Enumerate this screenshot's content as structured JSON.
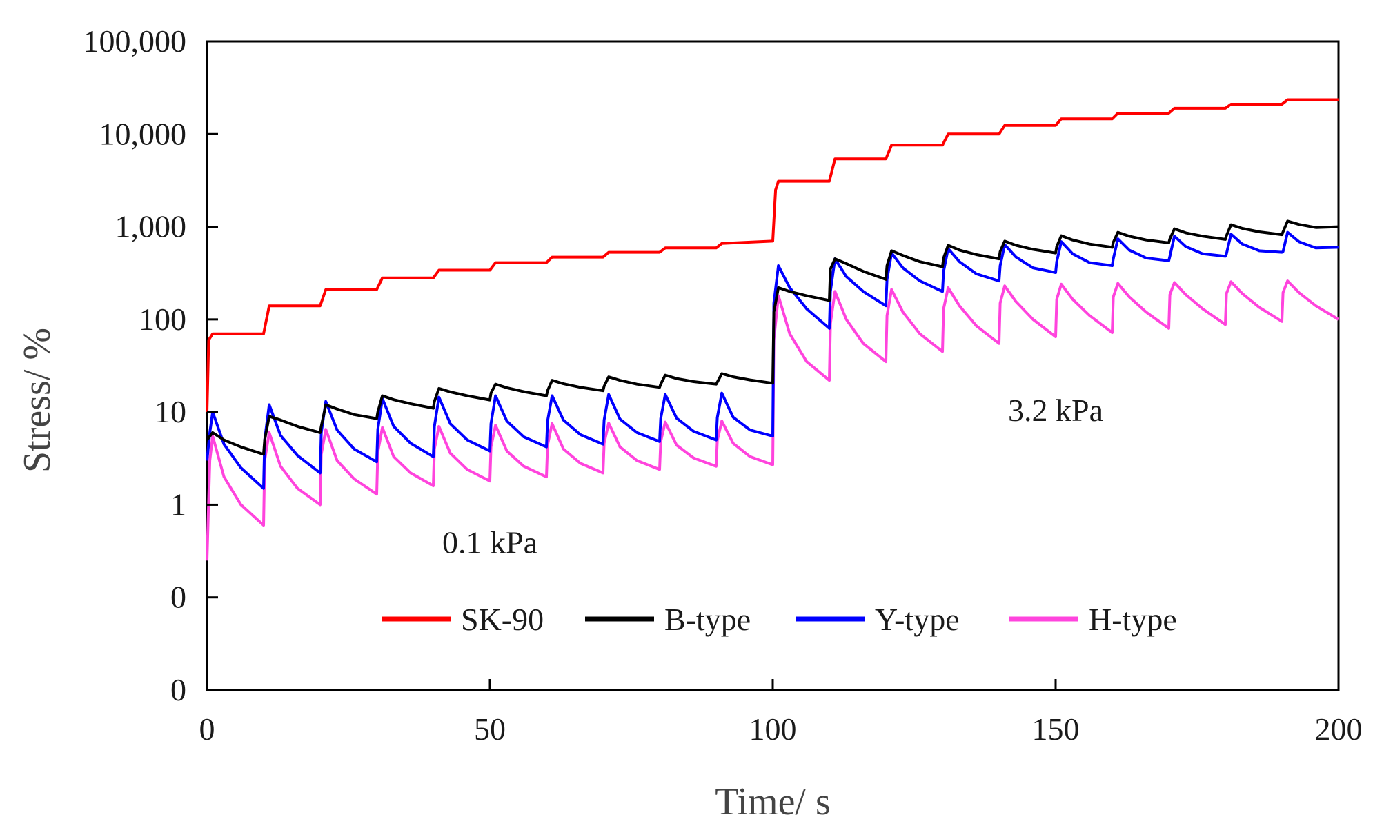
{
  "chart_data": {
    "type": "line",
    "title": "",
    "xlabel": "Time/ s",
    "ylabel": "Stress/ %",
    "xlim": [
      0,
      200
    ],
    "y_scale": "log",
    "ylim": [
      0.01,
      100000
    ],
    "x_ticks": [
      0,
      50,
      100,
      150,
      200
    ],
    "x_tick_labels": [
      "0",
      "50",
      "100",
      "150",
      "200"
    ],
    "y_ticks": [
      0.01,
      0.1,
      1,
      10,
      100,
      1000,
      10000,
      100000
    ],
    "y_tick_labels": [
      "0",
      "0",
      "1",
      "10",
      "100",
      "1,000",
      "10,000",
      "100,000"
    ],
    "grid": false,
    "legend_position": "bottom-center",
    "annotations": [
      {
        "text": "0.1 kPa",
        "x": 50,
        "y": 0.3
      },
      {
        "text": "3.2 kPa",
        "x": 150,
        "y": 8
      }
    ],
    "series": [
      {
        "name": "SK-90",
        "color": "#ff0000",
        "x": [
          0,
          0.3,
          1,
          10,
          11,
          20,
          21,
          30,
          31,
          40,
          41,
          50,
          51,
          60,
          61,
          70,
          71,
          80,
          81,
          90,
          91,
          100,
          100.5,
          101,
          110,
          111,
          120,
          121,
          130,
          131,
          140,
          141,
          150,
          151,
          160,
          161,
          170,
          171,
          180,
          181,
          190,
          191,
          200
        ],
        "y": [
          10,
          60,
          70,
          70,
          140,
          140,
          210,
          210,
          280,
          280,
          340,
          340,
          410,
          410,
          470,
          470,
          530,
          530,
          590,
          590,
          660,
          700,
          2500,
          3100,
          3100,
          5400,
          5400,
          7600,
          7600,
          10000,
          10000,
          12400,
          12400,
          14600,
          14600,
          16800,
          16800,
          19000,
          19000,
          21000,
          21000,
          23500,
          23500
        ]
      },
      {
        "name": "B-type",
        "color": "#000000",
        "x": [
          0,
          1,
          3,
          6,
          10,
          10.2,
          11,
          13,
          16,
          20,
          20.2,
          21,
          23,
          26,
          30,
          30.2,
          31,
          33,
          36,
          40,
          40.2,
          41,
          43,
          46,
          50,
          50.2,
          51,
          53,
          56,
          60,
          60.2,
          61,
          63,
          66,
          70,
          70.2,
          71,
          73,
          76,
          80,
          80.2,
          81,
          83,
          86,
          90,
          90.2,
          91,
          93,
          96,
          100,
          100.2,
          101,
          103,
          106,
          110,
          110.2,
          111,
          113,
          116,
          120,
          120.2,
          121,
          123,
          126,
          130,
          130.2,
          131,
          133,
          136,
          140,
          140.2,
          141,
          143,
          146,
          150,
          150.2,
          151,
          153,
          156,
          160,
          160.2,
          161,
          163,
          166,
          170,
          170.2,
          171,
          173,
          176,
          180,
          180.2,
          181,
          183,
          186,
          190,
          190.2,
          191,
          193,
          196,
          200
        ],
        "y": [
          5,
          6,
          5,
          4.2,
          3.5,
          5,
          9,
          8.2,
          7,
          6,
          7,
          12,
          10.8,
          9.4,
          8.5,
          10,
          15,
          13.6,
          12.3,
          11,
          13,
          18,
          16.5,
          15,
          13.5,
          16,
          20,
          18.3,
          16.6,
          15,
          17,
          22,
          20.2,
          18.5,
          17,
          19,
          24,
          22,
          20,
          18.5,
          20,
          25,
          23,
          21.3,
          20,
          21,
          26,
          24,
          22.2,
          20.5,
          120,
          220,
          200,
          180,
          160,
          350,
          450,
          400,
          330,
          270,
          380,
          550,
          490,
          420,
          370,
          460,
          630,
          560,
          500,
          450,
          540,
          700,
          630,
          570,
          520,
          610,
          800,
          720,
          650,
          600,
          680,
          870,
          790,
          720,
          670,
          740,
          950,
          860,
          790,
          730,
          800,
          1050,
          960,
          880,
          820,
          880,
          1150,
          1060,
          980,
          1000
        ]
      },
      {
        "name": "Y-type",
        "color": "#0000ff",
        "x": [
          0,
          0.5,
          1,
          3,
          6,
          10,
          10.2,
          11,
          13,
          16,
          20,
          20.2,
          21,
          23,
          26,
          30,
          30.2,
          31,
          33,
          36,
          40,
          40.2,
          41,
          43,
          46,
          50,
          50.2,
          51,
          53,
          56,
          60,
          60.2,
          61,
          63,
          66,
          70,
          70.2,
          71,
          73,
          76,
          80,
          80.2,
          81,
          83,
          86,
          90,
          90.2,
          91,
          93,
          96,
          100,
          100.2,
          101,
          103,
          106,
          110,
          110.2,
          111,
          113,
          116,
          120,
          120.2,
          121,
          123,
          126,
          130,
          130.2,
          131,
          133,
          136,
          140,
          140.2,
          141,
          143,
          146,
          150,
          150.2,
          151,
          153,
          156,
          160,
          160.2,
          161,
          163,
          166,
          170,
          170.2,
          171,
          173,
          176,
          180,
          180.2,
          181,
          183,
          186,
          190,
          190.2,
          191,
          193,
          196,
          200
        ],
        "y": [
          3,
          6,
          10,
          4.5,
          2.5,
          1.5,
          5,
          12,
          5.6,
          3.4,
          2.2,
          6,
          13,
          6.4,
          4,
          2.9,
          6.5,
          14,
          7,
          4.6,
          3.3,
          7,
          14.5,
          7.5,
          5,
          3.8,
          7.5,
          15,
          8,
          5.4,
          4.2,
          8,
          15,
          8.2,
          5.7,
          4.5,
          8.2,
          15.5,
          8.4,
          6,
          4.8,
          8.5,
          15.5,
          8.6,
          6.2,
          5,
          8.7,
          16,
          8.8,
          6.4,
          5.5,
          150,
          380,
          220,
          130,
          80,
          200,
          450,
          290,
          200,
          140,
          270,
          520,
          360,
          260,
          200,
          330,
          580,
          420,
          310,
          260,
          380,
          640,
          470,
          360,
          320,
          420,
          690,
          510,
          410,
          380,
          450,
          740,
          560,
          460,
          430,
          480,
          790,
          610,
          510,
          480,
          510,
          830,
          650,
          550,
          530,
          540,
          870,
          690,
          590,
          600
        ]
      },
      {
        "name": "H-type",
        "color": "#ff44dd",
        "x": [
          0,
          0.5,
          1,
          3,
          6,
          10,
          10.2,
          11,
          13,
          16,
          20,
          20.2,
          21,
          23,
          26,
          30,
          30.2,
          31,
          33,
          36,
          40,
          40.2,
          41,
          43,
          46,
          50,
          50.2,
          51,
          53,
          56,
          60,
          60.2,
          61,
          63,
          66,
          70,
          70.2,
          71,
          73,
          76,
          80,
          80.2,
          81,
          83,
          86,
          90,
          90.2,
          91,
          93,
          96,
          100,
          100.2,
          101,
          103,
          106,
          110,
          110.2,
          111,
          113,
          116,
          120,
          120.2,
          121,
          123,
          126,
          130,
          130.2,
          131,
          133,
          136,
          140,
          140.2,
          141,
          143,
          146,
          150,
          150.2,
          151,
          153,
          156,
          160,
          160.2,
          161,
          163,
          166,
          170,
          170.2,
          171,
          173,
          176,
          180,
          180.2,
          181,
          183,
          186,
          190,
          190.2,
          191,
          193,
          196,
          200
        ],
        "y": [
          0.25,
          3,
          5.5,
          2,
          1,
          0.6,
          3,
          6,
          2.6,
          1.5,
          1,
          3.5,
          6.5,
          3,
          1.9,
          1.3,
          3.7,
          6.8,
          3.3,
          2.2,
          1.6,
          4,
          7,
          3.6,
          2.4,
          1.8,
          4.2,
          7.2,
          3.8,
          2.6,
          2,
          4.4,
          7.5,
          4,
          2.8,
          2.2,
          4.6,
          7.6,
          4.2,
          3,
          2.4,
          4.8,
          7.8,
          4.4,
          3.2,
          2.6,
          4.9,
          8,
          4.6,
          3.3,
          2.7,
          60,
          180,
          70,
          35,
          22,
          90,
          200,
          100,
          55,
          35,
          110,
          210,
          120,
          70,
          45,
          130,
          220,
          140,
          85,
          55,
          150,
          230,
          155,
          100,
          65,
          165,
          240,
          165,
          110,
          72,
          175,
          245,
          175,
          120,
          80,
          185,
          250,
          185,
          130,
          88,
          190,
          255,
          190,
          135,
          95,
          195,
          260,
          195,
          140,
          100
        ]
      }
    ]
  }
}
